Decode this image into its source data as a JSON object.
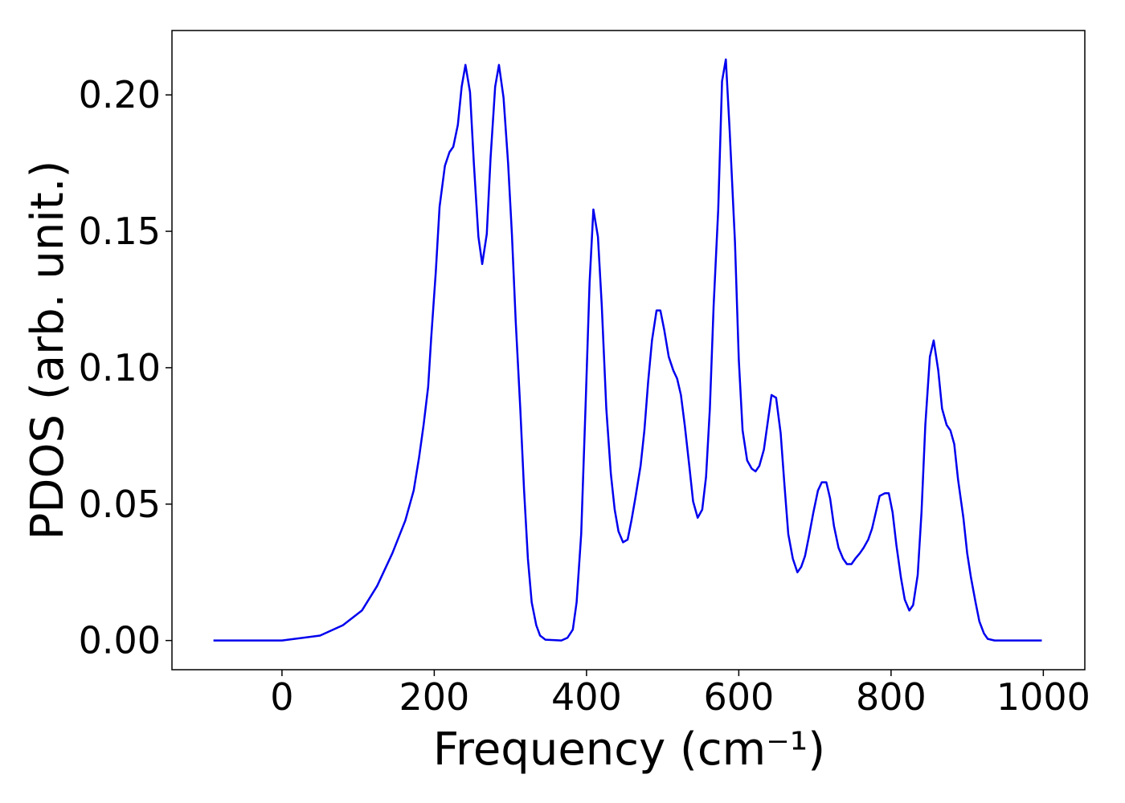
{
  "chart_data": {
    "type": "line",
    "xlabel": "Frequency (cm⁻¹)",
    "ylabel": "PDOS (arb. unit.)",
    "xlim": [
      -144.5,
      1054.5
    ],
    "ylim": [
      -0.0107,
      0.2236
    ],
    "xticks": [
      0,
      200,
      400,
      600,
      800,
      1000
    ],
    "yticks": [
      {
        "value": 0,
        "label": "0.00"
      },
      {
        "value": 0.05,
        "label": "0.05"
      },
      {
        "value": 0.1,
        "label": "0.10"
      },
      {
        "value": 0.15,
        "label": "0.15"
      },
      {
        "value": 0.2,
        "label": "0.20"
      }
    ],
    "grid": false,
    "series": [
      {
        "color": "#0000ee",
        "x": [
          -90,
          0,
          50,
          80,
          105,
          125,
          145,
          162,
          173,
          180,
          186,
          192,
          196,
          202,
          207,
          214,
          220,
          225,
          231,
          236,
          241,
          247,
          252,
          258,
          263,
          269,
          274,
          280,
          285,
          291,
          297,
          302,
          307,
          313,
          318,
          323,
          328,
          334,
          339,
          346,
          367,
          375,
          382,
          387,
          393,
          399,
          404,
          409,
          415,
          420,
          426,
          432,
          437,
          442,
          448,
          454,
          459,
          464,
          471,
          476,
          481,
          486,
          492,
          497,
          502,
          508,
          514,
          519,
          524,
          529,
          535,
          540,
          546,
          552,
          557,
          562,
          567,
          573,
          578,
          583,
          588,
          595,
          600,
          605,
          611,
          617,
          622,
          627,
          633,
          638,
          643,
          649,
          655,
          660,
          665,
          671,
          677,
          682,
          687,
          692,
          698,
          704,
          709,
          715,
          720,
          725,
          731,
          737,
          742,
          748,
          753,
          759,
          764,
          770,
          775,
          780,
          785,
          792,
          797,
          802,
          807,
          813,
          818,
          824,
          829,
          835,
          840,
          845,
          851,
          856,
          862,
          867,
          873,
          878,
          883,
          888,
          895,
          900,
          905,
          911,
          916,
          922,
          927,
          936,
          998
        ],
        "values": [
          0,
          0,
          0.0018,
          0.0056,
          0.011,
          0.02,
          0.032,
          0.044,
          0.055,
          0.067,
          0.079,
          0.093,
          0.111,
          0.135,
          0.159,
          0.174,
          0.179,
          0.181,
          0.189,
          0.203,
          0.211,
          0.201,
          0.175,
          0.148,
          0.138,
          0.149,
          0.177,
          0.203,
          0.211,
          0.199,
          0.175,
          0.149,
          0.117,
          0.085,
          0.055,
          0.03,
          0.014,
          0.0056,
          0.0018,
          0.0003,
          0,
          0.001,
          0.004,
          0.014,
          0.039,
          0.088,
          0.131,
          0.158,
          0.148,
          0.123,
          0.085,
          0.061,
          0.048,
          0.04,
          0.036,
          0.037,
          0.044,
          0.052,
          0.064,
          0.077,
          0.095,
          0.11,
          0.121,
          0.121,
          0.114,
          0.104,
          0.099,
          0.096,
          0.09,
          0.079,
          0.064,
          0.051,
          0.045,
          0.048,
          0.06,
          0.085,
          0.123,
          0.158,
          0.205,
          0.213,
          0.187,
          0.146,
          0.103,
          0.077,
          0.066,
          0.063,
          0.062,
          0.064,
          0.07,
          0.08,
          0.09,
          0.089,
          0.076,
          0.057,
          0.039,
          0.03,
          0.025,
          0.027,
          0.031,
          0.038,
          0.047,
          0.055,
          0.058,
          0.058,
          0.052,
          0.042,
          0.034,
          0.03,
          0.028,
          0.028,
          0.03,
          0.032,
          0.034,
          0.037,
          0.041,
          0.047,
          0.053,
          0.054,
          0.054,
          0.047,
          0.035,
          0.023,
          0.015,
          0.011,
          0.013,
          0.024,
          0.047,
          0.079,
          0.104,
          0.11,
          0.099,
          0.085,
          0.079,
          0.077,
          0.072,
          0.059,
          0.045,
          0.032,
          0.023,
          0.014,
          0.007,
          0.0026,
          0.0006,
          0,
          0
        ]
      }
    ]
  }
}
